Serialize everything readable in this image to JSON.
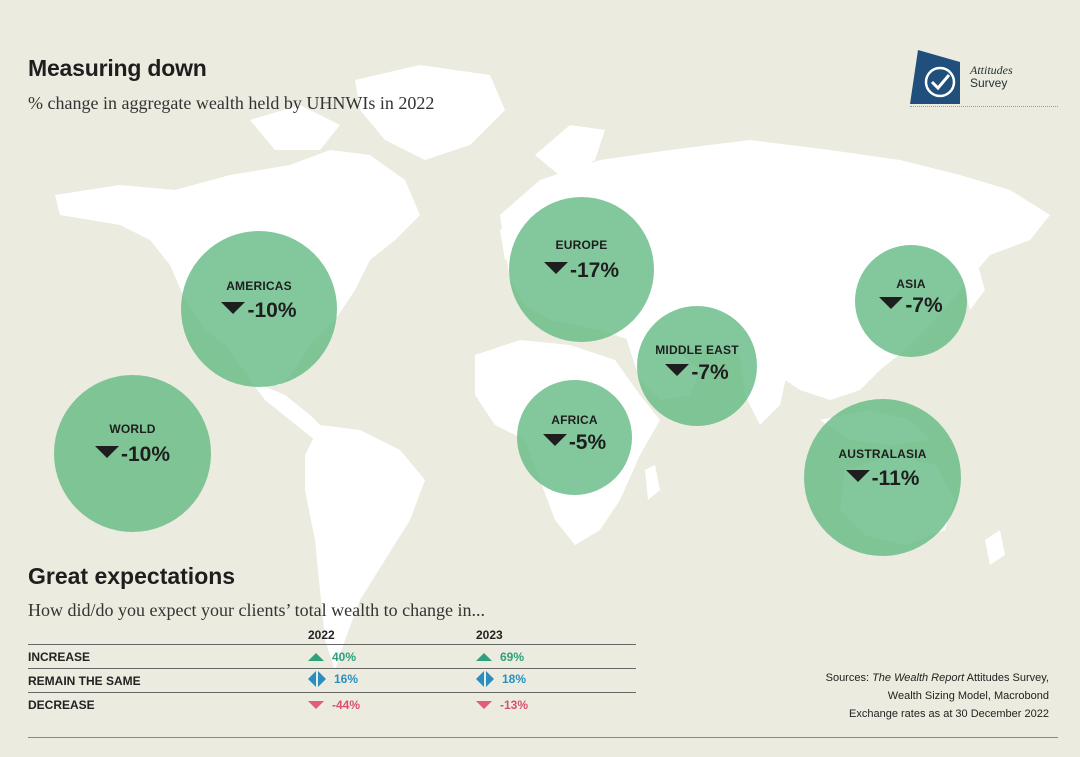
{
  "header": {
    "title": "Measuring down",
    "subtitle": "% change in aggregate wealth held by UHNWIs in 2022"
  },
  "logo": {
    "line1": "Attitudes",
    "line2": "Survey"
  },
  "regions": [
    {
      "name": "AMERICAS",
      "value": "-10%",
      "change": -10
    },
    {
      "name": "WORLD",
      "value": "-10%",
      "change": -10
    },
    {
      "name": "EUROPE",
      "value": "-17%",
      "change": -17
    },
    {
      "name": "MIDDLE EAST",
      "value": "-7%",
      "change": -7
    },
    {
      "name": "AFRICA",
      "value": "-5%",
      "change": -5
    },
    {
      "name": "ASIA",
      "value": "-7%",
      "change": -7
    },
    {
      "name": "AUSTRALASIA",
      "value": "-11%",
      "change": -11
    }
  ],
  "expectations": {
    "title": "Great expectations",
    "question": "How did/do you expect your clients’ total wealth to change in...",
    "columns": [
      "2022",
      "2023"
    ],
    "rows": [
      {
        "label": "INCREASE",
        "v2022": "40%",
        "v2023": "69%"
      },
      {
        "label": "REMAIN THE SAME",
        "v2022": "16%",
        "v2023": "18%"
      },
      {
        "label": "DECREASE",
        "v2022": "-44%",
        "v2023": "-13%"
      }
    ]
  },
  "sources": {
    "prefix": "Sources: ",
    "italic": "The Wealth Report",
    "rest": " Attitudes Survey,",
    "line2": "Wealth Sizing Model, Macrobond",
    "line3": "Exchange rates as at 30 December 2022"
  },
  "colors": {
    "bubble": "#60b880",
    "up": "#2ea07a",
    "same": "#2a8fbf",
    "down": "#d94f6f",
    "background": "#ecebdf"
  }
}
